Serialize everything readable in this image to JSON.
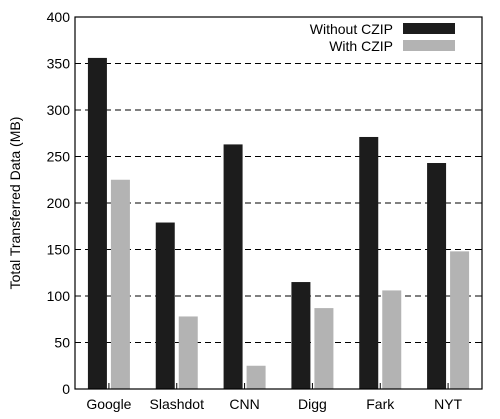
{
  "chart_data": {
    "type": "bar",
    "categories": [
      "Google",
      "Slashdot",
      "CNN",
      "Digg",
      "Fark",
      "NYT"
    ],
    "series": [
      {
        "name": "Without CZIP",
        "color": "#1c1c1c",
        "values": [
          356,
          179,
          263,
          115,
          271,
          243
        ]
      },
      {
        "name": "With CZIP",
        "color": "#b3b3b3",
        "values": [
          225,
          78,
          25,
          87,
          106,
          148
        ]
      }
    ],
    "xlabel": "",
    "ylabel": "Total Transferred Data (MB)",
    "ylim": [
      0,
      400
    ],
    "yticks": [
      0,
      50,
      100,
      150,
      200,
      250,
      300,
      350,
      400
    ],
    "grid": true,
    "legend_position": "top-right"
  }
}
